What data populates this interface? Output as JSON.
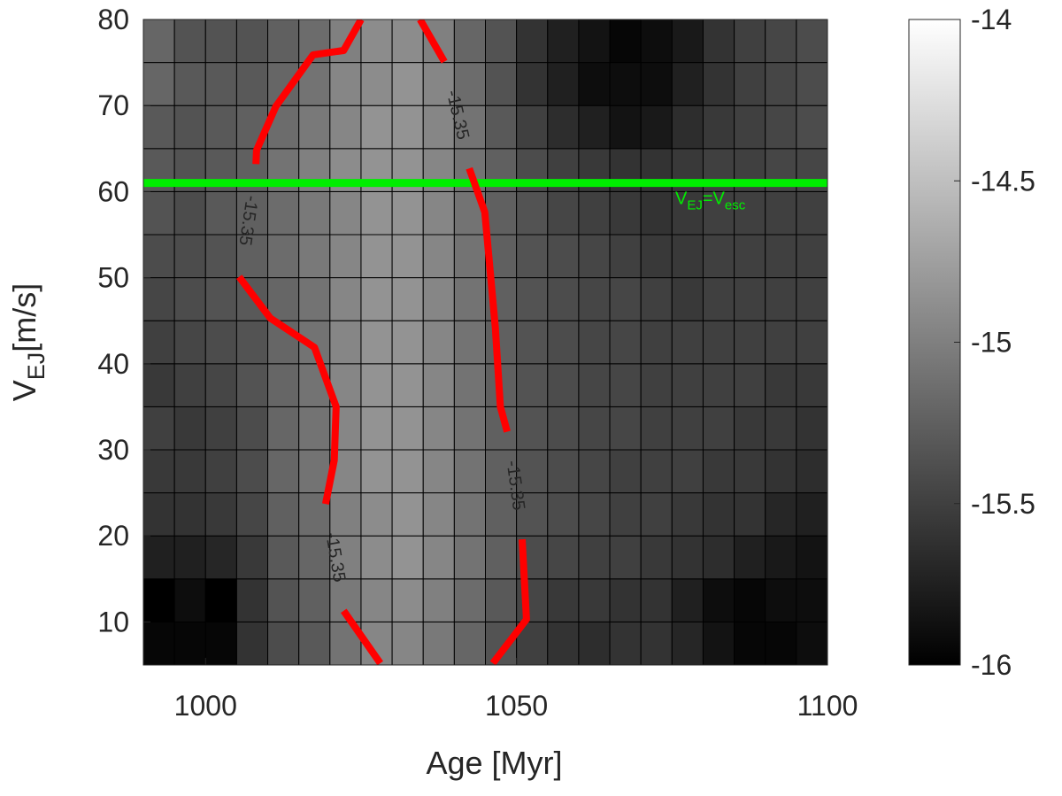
{
  "chart_data": {
    "type": "heatmap",
    "xlabel": "Age [Myr]",
    "ylabel": {
      "parts": [
        "V",
        "EJ",
        "[m/s]"
      ]
    },
    "x": [
      992.5,
      997.5,
      1002.5,
      1007.5,
      1012.5,
      1017.5,
      1022.5,
      1027.5,
      1032.5,
      1037.5,
      1042.5,
      1047.5,
      1052.5,
      1057.5,
      1062.5,
      1067.5,
      1072.5,
      1077.5,
      1082.5,
      1087.5,
      1092.5,
      1097.5
    ],
    "y": [
      7.5,
      12.5,
      17.5,
      22.5,
      27.5,
      32.5,
      37.5,
      42.5,
      47.5,
      52.5,
      57.5,
      62.5,
      67.5,
      72.5,
      77.5
    ],
    "z": [
      [
        -15.95,
        -15.95,
        -15.95,
        -15.6,
        -15.4,
        -15.3,
        -15.1,
        -14.95,
        -14.95,
        -15.05,
        -15.2,
        -15.35,
        -15.5,
        -15.6,
        -15.65,
        -15.6,
        -15.6,
        -15.7,
        -15.85,
        -15.95,
        -15.95,
        -15.9
      ],
      [
        -16,
        -15.9,
        -16,
        -15.6,
        -15.35,
        -15.25,
        -15.05,
        -14.95,
        -14.9,
        -15,
        -15.15,
        -15.3,
        -15.45,
        -15.55,
        -15.55,
        -15.6,
        -15.6,
        -15.75,
        -15.9,
        -15.95,
        -15.9,
        -15.9
      ],
      [
        -15.75,
        -15.75,
        -15.7,
        -15.55,
        -15.3,
        -15.2,
        -15.0,
        -14.9,
        -14.85,
        -14.95,
        -15.1,
        -15.25,
        -15.4,
        -15.45,
        -15.5,
        -15.5,
        -15.55,
        -15.6,
        -15.65,
        -15.75,
        -15.8,
        -15.85
      ],
      [
        -15.6,
        -15.6,
        -15.55,
        -15.45,
        -15.25,
        -15.15,
        -15.0,
        -14.9,
        -14.85,
        -14.95,
        -15.1,
        -15.25,
        -15.35,
        -15.4,
        -15.45,
        -15.5,
        -15.5,
        -15.55,
        -15.6,
        -15.6,
        -15.7,
        -15.75
      ],
      [
        -15.55,
        -15.55,
        -15.5,
        -15.4,
        -15.2,
        -15.1,
        -14.95,
        -14.85,
        -14.85,
        -14.95,
        -15.1,
        -15.25,
        -15.35,
        -15.4,
        -15.45,
        -15.5,
        -15.5,
        -15.5,
        -15.55,
        -15.55,
        -15.6,
        -15.65
      ],
      [
        -15.5,
        -15.55,
        -15.5,
        -15.4,
        -15.2,
        -15.1,
        -14.95,
        -14.85,
        -14.85,
        -14.95,
        -15.1,
        -15.25,
        -15.35,
        -15.4,
        -15.45,
        -15.45,
        -15.5,
        -15.5,
        -15.5,
        -15.55,
        -15.55,
        -15.6
      ],
      [
        -15.55,
        -15.5,
        -15.45,
        -15.35,
        -15.2,
        -15.1,
        -14.95,
        -14.85,
        -14.85,
        -14.95,
        -15.1,
        -15.25,
        -15.35,
        -15.4,
        -15.45,
        -15.45,
        -15.5,
        -15.5,
        -15.5,
        -15.5,
        -15.55,
        -15.55
      ],
      [
        -15.5,
        -15.45,
        -15.4,
        -15.35,
        -15.2,
        -15.1,
        -14.95,
        -14.85,
        -14.85,
        -14.95,
        -15.1,
        -15.25,
        -15.35,
        -15.4,
        -15.45,
        -15.45,
        -15.5,
        -15.5,
        -15.5,
        -15.5,
        -15.5,
        -15.5
      ],
      [
        -15.45,
        -15.4,
        -15.35,
        -15.3,
        -15.2,
        -15.1,
        -14.95,
        -14.85,
        -14.85,
        -14.95,
        -15.1,
        -15.25,
        -15.35,
        -15.4,
        -15.45,
        -15.45,
        -15.5,
        -15.55,
        -15.5,
        -15.5,
        -15.5,
        -15.5
      ],
      [
        -15.4,
        -15.4,
        -15.35,
        -15.25,
        -15.15,
        -15.05,
        -14.95,
        -14.85,
        -14.85,
        -14.95,
        -15.1,
        -15.25,
        -15.35,
        -15.4,
        -15.45,
        -15.5,
        -15.55,
        -15.55,
        -15.5,
        -15.5,
        -15.5,
        -15.5
      ],
      [
        -15.35,
        -15.4,
        -15.3,
        -15.25,
        -15.15,
        -15.05,
        -14.95,
        -14.85,
        -14.85,
        -14.95,
        -15.1,
        -15.25,
        -15.35,
        -15.45,
        -15.5,
        -15.55,
        -15.6,
        -15.55,
        -15.5,
        -15.5,
        -15.5,
        -15.5
      ],
      [
        -15.3,
        -15.35,
        -15.3,
        -15.25,
        -15.1,
        -15.0,
        -14.9,
        -14.85,
        -14.85,
        -14.95,
        -15.1,
        -15.25,
        -15.4,
        -15.5,
        -15.55,
        -15.6,
        -15.6,
        -15.55,
        -15.5,
        -15.5,
        -15.45,
        -15.45
      ],
      [
        -15.3,
        -15.35,
        -15.3,
        -15.25,
        -15.15,
        -15.05,
        -14.95,
        -14.85,
        -14.85,
        -14.95,
        -15.1,
        -15.3,
        -15.5,
        -15.65,
        -15.75,
        -15.85,
        -15.8,
        -15.65,
        -15.55,
        -15.5,
        -15.45,
        -15.4
      ],
      [
        -15.2,
        -15.3,
        -15.3,
        -15.3,
        -15.2,
        -15.1,
        -14.95,
        -14.9,
        -14.85,
        -14.95,
        -15.15,
        -15.35,
        -15.6,
        -15.75,
        -15.9,
        -15.9,
        -15.9,
        -15.75,
        -15.6,
        -15.5,
        -15.45,
        -15.4
      ],
      [
        -15.2,
        -15.35,
        -15.35,
        -15.35,
        -15.25,
        -15.15,
        -15.0,
        -14.9,
        -14.9,
        -15.0,
        -15.2,
        -15.35,
        -15.6,
        -15.75,
        -15.85,
        -15.95,
        -15.9,
        -15.8,
        -15.6,
        -15.5,
        -15.45,
        -15.4
      ]
    ],
    "xlim": [
      990,
      1100
    ],
    "xticks": [
      1000,
      1050,
      1100
    ],
    "ylim": [
      5,
      80
    ],
    "yticks": [
      10,
      20,
      30,
      40,
      50,
      60,
      70,
      80
    ],
    "colormap": "gray",
    "clim": [
      -16,
      -14
    ],
    "cticks": [
      -14,
      -14.5,
      -15,
      -15.5,
      -16
    ],
    "contours": [
      {
        "label": "-15.35",
        "color": "#ff0000",
        "x": [
          1025.0,
          1022.2,
          1017.3,
          1011.3,
          1008.2,
          1008.1,
          null,
          1005.4,
          1010.4,
          1017.5,
          1021.0,
          1020.7,
          1019.3,
          null,
          1022.2,
          1028.1
        ],
        "y": [
          80,
          76.4,
          75.9,
          69.9,
          64.8,
          63.2,
          null,
          50.1,
          45.3,
          41.9,
          35.0,
          28.8,
          23.7,
          null,
          11.3,
          5.2
        ]
      },
      {
        "label": "-15.35",
        "color": "#ff0000",
        "x": [
          1034.5,
          1038.4,
          null,
          1042.4,
          1044.9,
          1046.6,
          1047.4,
          1048.5,
          null,
          1050.9,
          1051.6,
          1046.2
        ],
        "y": [
          80,
          75.1,
          null,
          62.7,
          57.6,
          44.2,
          35.0,
          32.1,
          null,
          19.6,
          10.3,
          5.2
        ]
      }
    ],
    "hline": {
      "y": 61,
      "color": "#00ee00",
      "label": {
        "parts": [
          "V",
          "EJ",
          "=V",
          "esc"
        ]
      }
    }
  }
}
